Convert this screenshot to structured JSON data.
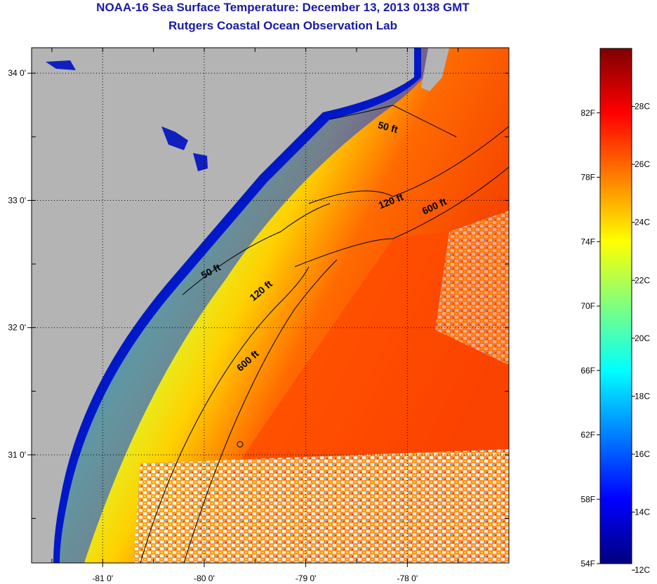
{
  "header": {
    "title": "NOAA-16 Sea Surface Temperature:  December 13, 2013 0138 GMT",
    "subtitle": "Rutgers Coastal Ocean Observation Lab"
  },
  "map": {
    "lon_range": [
      -81.7,
      -77.0
    ],
    "lat_range": [
      30.15,
      34.2
    ],
    "lon_ticks": [
      -81,
      -80,
      -79,
      -78
    ],
    "lat_ticks": [
      31,
      32,
      33,
      34
    ],
    "lon_tick_labels": [
      "-81 0'",
      "-80 0'",
      "-79 0'",
      "-78 0'"
    ],
    "lat_tick_labels": [
      "31 0'",
      "32 0'",
      "33 0'",
      "34 0'"
    ],
    "land_color": "#b4b4b4",
    "cloud_color": "#ffffff",
    "contour_labels": [
      {
        "text": "50 ft",
        "lon": -78.2,
        "lat": 33.55,
        "angle": 15
      },
      {
        "text": "120 ft",
        "lon": -78.15,
        "lat": 32.97,
        "angle": -22
      },
      {
        "text": "600 ft",
        "lon": -77.72,
        "lat": 32.93,
        "angle": -25
      },
      {
        "text": "50 ft",
        "lon": -79.92,
        "lat": 32.42,
        "angle": -28
      },
      {
        "text": "120 ft",
        "lon": -79.42,
        "lat": 32.27,
        "angle": -40
      },
      {
        "text": "600 ft",
        "lon": -79.55,
        "lat": 31.72,
        "angle": -42
      }
    ]
  },
  "colorbar": {
    "f_labels": [
      "82F",
      "78F",
      "74F",
      "70F",
      "66F",
      "62F",
      "58F",
      "54F"
    ],
    "c_labels": [
      "28C",
      "26C",
      "24C",
      "22C",
      "20C",
      "18C",
      "16C",
      "14C",
      "12C"
    ],
    "colors": [
      "#00007f",
      "#0000ff",
      "#007fff",
      "#00ffff",
      "#7fff7f",
      "#ffff00",
      "#ff7f00",
      "#ff0000",
      "#7f0000"
    ]
  }
}
